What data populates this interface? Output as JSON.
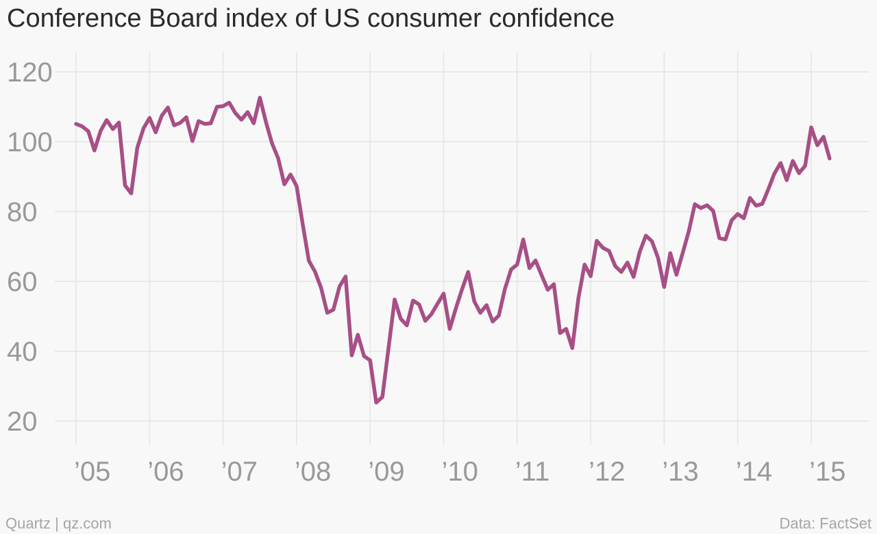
{
  "title": "Conference Board index of US consumer confidence",
  "footer": {
    "source_left": "Quartz | qz.com",
    "source_right": "Data: FactSet"
  },
  "colors": {
    "line": "#a74f86",
    "grid": "#e4e4e4",
    "tick_text": "#999999",
    "background": "#f8f8f8"
  },
  "chart_data": {
    "type": "line",
    "title": "Conference Board index of US consumer confidence",
    "xlabel": "",
    "ylabel": "",
    "ylim": [
      12,
      128
    ],
    "y_ticks": [
      20,
      40,
      60,
      80,
      100,
      120
    ],
    "x_tick_years": [
      2005,
      2006,
      2007,
      2008,
      2009,
      2010,
      2011,
      2012,
      2013,
      2014,
      2015
    ],
    "x_tick_labels": [
      "’05",
      "’06",
      "’07",
      "’08",
      "’09",
      "’10",
      "’11",
      "’12",
      "’13",
      "’14",
      "’15"
    ],
    "grid": true,
    "legend": "none",
    "series": [
      {
        "frequency": "monthly",
        "start": "2005-01",
        "end": "2015-04",
        "values": [
          105.1,
          104.4,
          103.0,
          97.5,
          103.1,
          106.2,
          103.6,
          105.5,
          87.5,
          85.2,
          98.3,
          103.8,
          106.8,
          102.7,
          107.5,
          109.8,
          104.7,
          105.4,
          107.0,
          100.2,
          105.9,
          105.1,
          105.3,
          110.0,
          110.2,
          111.2,
          108.2,
          106.3,
          108.5,
          105.3,
          112.6,
          105.6,
          99.5,
          95.2,
          87.8,
          90.6,
          87.3,
          76.4,
          65.9,
          62.8,
          58.1,
          51.0,
          51.9,
          58.5,
          61.4,
          38.8,
          44.7,
          38.6,
          37.4,
          25.3,
          26.9,
          40.8,
          54.8,
          49.3,
          47.4,
          54.5,
          53.4,
          48.7,
          50.6,
          53.6,
          56.5,
          46.4,
          52.3,
          57.7,
          62.7,
          54.3,
          51.0,
          53.2,
          48.5,
          50.2,
          57.8,
          63.4,
          64.8,
          72.0,
          63.8,
          66.0,
          61.7,
          57.6,
          59.2,
          45.2,
          46.4,
          40.9,
          55.2,
          64.8,
          61.5,
          71.6,
          69.6,
          68.7,
          64.4,
          62.7,
          65.4,
          61.3,
          68.4,
          73.1,
          71.5,
          66.7,
          58.4,
          68.1,
          61.9,
          68.0,
          74.3,
          82.1,
          81.0,
          81.8,
          80.2,
          72.4,
          72.0,
          77.5,
          79.3,
          78.1,
          83.9,
          81.7,
          82.2,
          86.4,
          90.9,
          93.9,
          89.0,
          94.5,
          91.0,
          93.1,
          104.1,
          99.0,
          101.4,
          95.2
        ]
      }
    ]
  }
}
